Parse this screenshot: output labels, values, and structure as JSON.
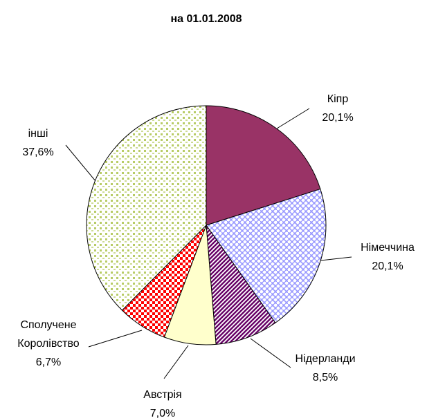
{
  "chart_data": {
    "type": "pie",
    "title": "на 01.01.2008",
    "categories": [
      "Кіпр",
      "Німеччина",
      "Нідерланди",
      "Австрія",
      "Сполучене Королівство",
      "інші"
    ],
    "values": [
      20.1,
      20.1,
      8.5,
      7.0,
      6.7,
      37.6
    ],
    "value_labels": [
      "20,1%",
      "20,1%",
      "8,5%",
      "7,0%",
      "6,7%",
      "37,6%"
    ],
    "colors": [
      "#993366",
      "#9999ff",
      "#660066",
      "#ffffcc",
      "#ff0000",
      "#b8cc66"
    ],
    "patterns": [
      "solid",
      "weave",
      "diagonal",
      "solid",
      "checker",
      "dots"
    ]
  }
}
